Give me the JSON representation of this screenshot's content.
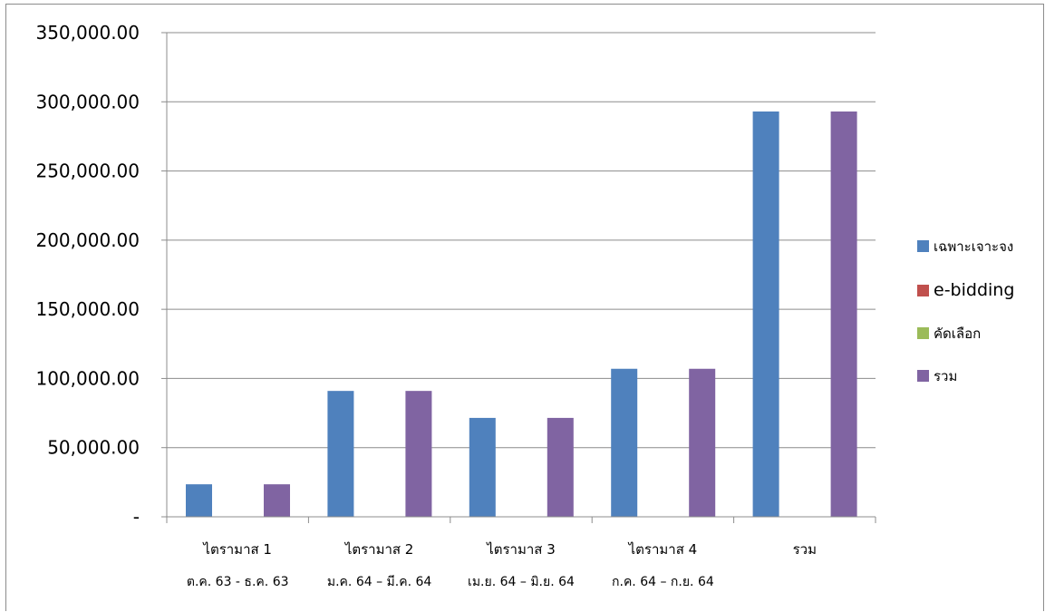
{
  "chart_data": {
    "type": "bar",
    "categories": [
      "ไตรามาส 1",
      "ไตรามาส 2",
      "ไตรามาส 3",
      "ไตรามาส 4",
      "รวม"
    ],
    "category_sublabels": [
      "ต.ค. 63 - ธ.ค. 63",
      "ม.ค. 64 – มี.ค. 64",
      "เม.ย. 64 – มิ.ย. 64",
      "ก.ค. 64 – ก.ย. 64",
      ""
    ],
    "series": [
      {
        "name": "เฉพาะเจาะจง",
        "color": "#4f81bd",
        "values": [
          23500,
          91000,
          71500,
          107000,
          293000
        ]
      },
      {
        "name": "e-bidding",
        "color": "#c0504d",
        "values": [
          0,
          0,
          0,
          0,
          0
        ]
      },
      {
        "name": "คัดเลือก",
        "color": "#9bbb59",
        "values": [
          0,
          0,
          0,
          0,
          0
        ]
      },
      {
        "name": "รวม",
        "color": "#8064a2",
        "values": [
          23500,
          91000,
          71500,
          107000,
          293000
        ]
      }
    ],
    "ylim": [
      0,
      350000
    ],
    "yticks": [
      0,
      50000,
      100000,
      150000,
      200000,
      250000,
      300000,
      350000
    ],
    "ytick_labels": [
      "-",
      "50,000.00",
      "100,000.00",
      "150,000.00",
      "200,000.00",
      "250,000.00",
      "300,000.00",
      "350,000.00"
    ],
    "grid": true,
    "legend_position": "right"
  }
}
